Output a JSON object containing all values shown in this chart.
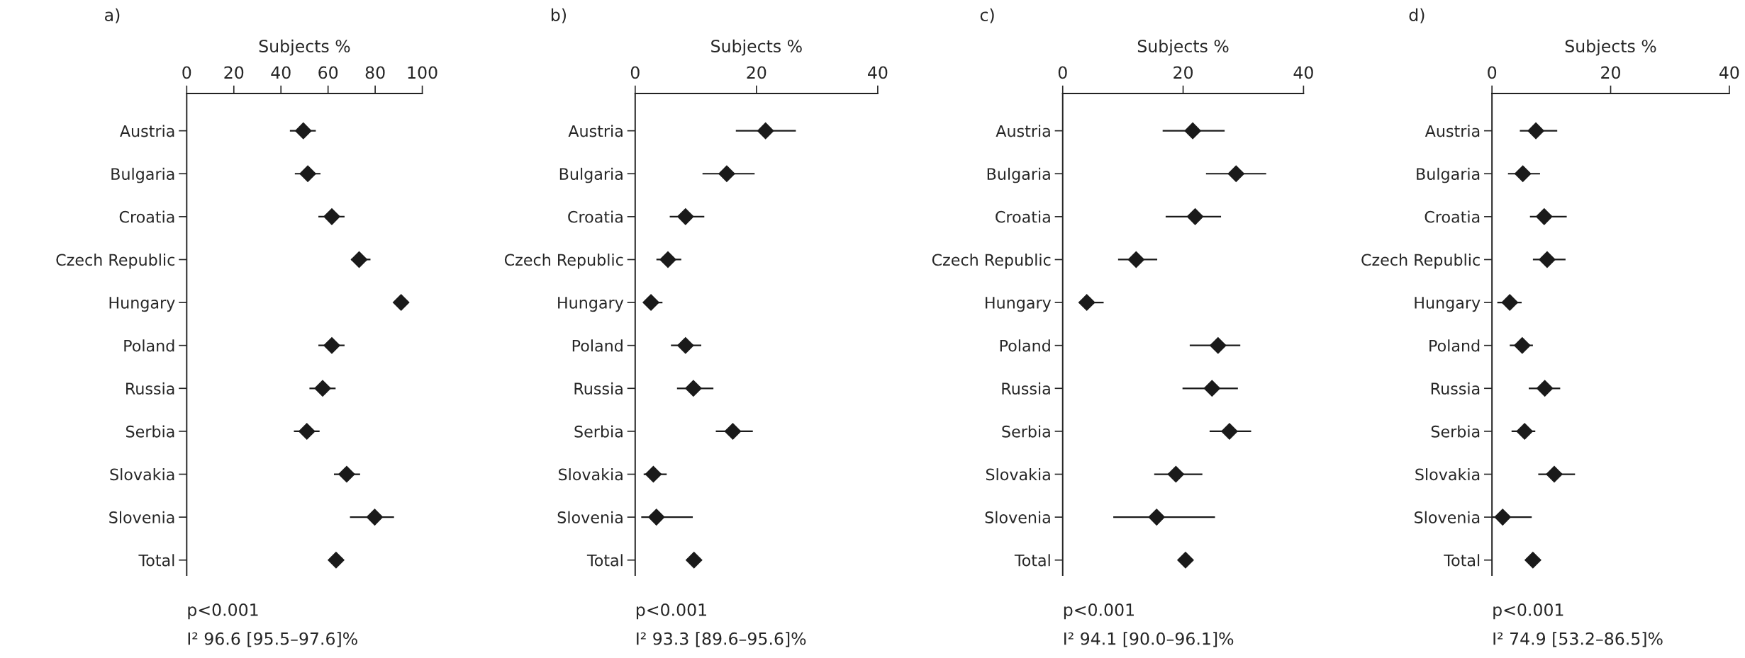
{
  "chart_data": [
    {
      "type": "scatter",
      "orientation": "horizontal",
      "title": "a)",
      "xlabel": "Subjects %",
      "marker": "diamond",
      "grid": false,
      "legend": false,
      "categories": [
        "Austria",
        "Bulgaria",
        "Croatia",
        "Czech Republic",
        "Hungary",
        "Poland",
        "Russia",
        "Serbia",
        "Slovakia",
        "Slovenia",
        "Total"
      ],
      "series": [
        {
          "color": "#1a1a1a",
          "values": [
            49.5,
            51.4,
            61.6,
            73.2,
            91,
            61.6,
            57.7,
            51,
            67.9,
            79.8,
            63.4
          ],
          "errors": [
            [
              43.8,
              54.8
            ],
            [
              45.9,
              56.8
            ],
            [
              55.9,
              67
            ],
            [
              69.8,
              78
            ],
            null,
            [
              55.9,
              67
            ],
            [
              52.1,
              63.2
            ],
            [
              45.5,
              56.4
            ],
            [
              62.5,
              73.6
            ],
            [
              69.3,
              88
            ],
            null
          ]
        }
      ],
      "xlim": [
        0,
        100
      ],
      "xticks": [
        0,
        20,
        40,
        60,
        80,
        100
      ],
      "annotations": [
        "p<0.001",
        "I² 96.6 [95.5–97.6]%"
      ]
    },
    {
      "type": "scatter",
      "orientation": "horizontal",
      "title": "b)",
      "xlabel": "Subjects %",
      "marker": "diamond",
      "grid": false,
      "legend": false,
      "categories": [
        "Austria",
        "Bulgaria",
        "Croatia",
        "Czech Republic",
        "Hungary",
        "Poland",
        "Russia",
        "Serbia",
        "Slovakia",
        "Slovenia",
        "Total"
      ],
      "series": [
        {
          "color": "#1a1a1a",
          "values": [
            21.5,
            15.1,
            8.3,
            5.4,
            2.6,
            8.3,
            9.6,
            16.1,
            3.0,
            3.5,
            9.7
          ],
          "errors": [
            [
              16.6,
              26.5
            ],
            [
              11.1,
              19.7
            ],
            [
              5.7,
              11.4
            ],
            [
              3.5,
              7.6
            ],
            [
              1.4,
              4.5
            ],
            [
              5.9,
              10.9
            ],
            [
              6.9,
              12.9
            ],
            [
              13.3,
              19.4
            ],
            [
              1.4,
              5.2
            ],
            [
              1.0,
              9.5
            ],
            null
          ]
        }
      ],
      "xlim": [
        0,
        40
      ],
      "xticks": [
        0,
        20,
        40
      ],
      "annotations": [
        "p<0.001",
        "I² 93.3 [89.6–95.6]%"
      ]
    },
    {
      "type": "scatter",
      "orientation": "horizontal",
      "title": "c)",
      "xlabel": "Subjects %",
      "marker": "diamond",
      "grid": false,
      "legend": false,
      "categories": [
        "Austria",
        "Bulgaria",
        "Croatia",
        "Czech Republic",
        "Hungary",
        "Poland",
        "Russia",
        "Serbia",
        "Slovakia",
        "Slovenia",
        "Total"
      ],
      "series": [
        {
          "color": "#1a1a1a",
          "values": [
            21.6,
            28.8,
            22.0,
            12.2,
            4.0,
            25.8,
            24.8,
            27.7,
            18.8,
            15.6,
            20.4
          ],
          "errors": [
            [
              16.6,
              26.9
            ],
            [
              23.8,
              33.8
            ],
            [
              17.1,
              26.3
            ],
            [
              9.2,
              15.7
            ],
            [
              2.7,
              6.8
            ],
            [
              21.1,
              29.5
            ],
            [
              19.9,
              29.1
            ],
            [
              24.4,
              31.3
            ],
            [
              15.2,
              23.2
            ],
            [
              8.4,
              25.3
            ],
            null
          ]
        }
      ],
      "xlim": [
        0,
        40
      ],
      "xticks": [
        0,
        20,
        40
      ],
      "annotations": [
        "p<0.001",
        "I² 94.1 [90.0–96.1]%"
      ]
    },
    {
      "type": "scatter",
      "orientation": "horizontal",
      "title": "d)",
      "xlabel": "Subjects %",
      "marker": "diamond",
      "grid": false,
      "legend": false,
      "categories": [
        "Austria",
        "Bulgaria",
        "Croatia",
        "Czech Republic",
        "Hungary",
        "Poland",
        "Russia",
        "Serbia",
        "Slovakia",
        "Slovenia",
        "Total"
      ],
      "series": [
        {
          "color": "#1a1a1a",
          "values": [
            7.4,
            5.2,
            8.8,
            9.3,
            3.0,
            5.1,
            8.9,
            5.5,
            10.5,
            1.8,
            6.9
          ],
          "errors": [
            [
              4.7,
              11.0
            ],
            [
              2.7,
              8.1
            ],
            [
              6.4,
              12.6
            ],
            [
              6.9,
              12.4
            ],
            [
              0.9,
              5.0
            ],
            [
              3.0,
              6.9
            ],
            [
              6.2,
              11.5
            ],
            [
              3.3,
              7.3
            ],
            [
              7.8,
              14.0
            ],
            [
              0,
              6.7
            ],
            null
          ]
        }
      ],
      "xlim": [
        0,
        40
      ],
      "xticks": [
        0,
        20,
        40
      ],
      "annotations": [
        "p<0.001",
        "I² 74.9 [53.2–86.5]%"
      ]
    }
  ]
}
